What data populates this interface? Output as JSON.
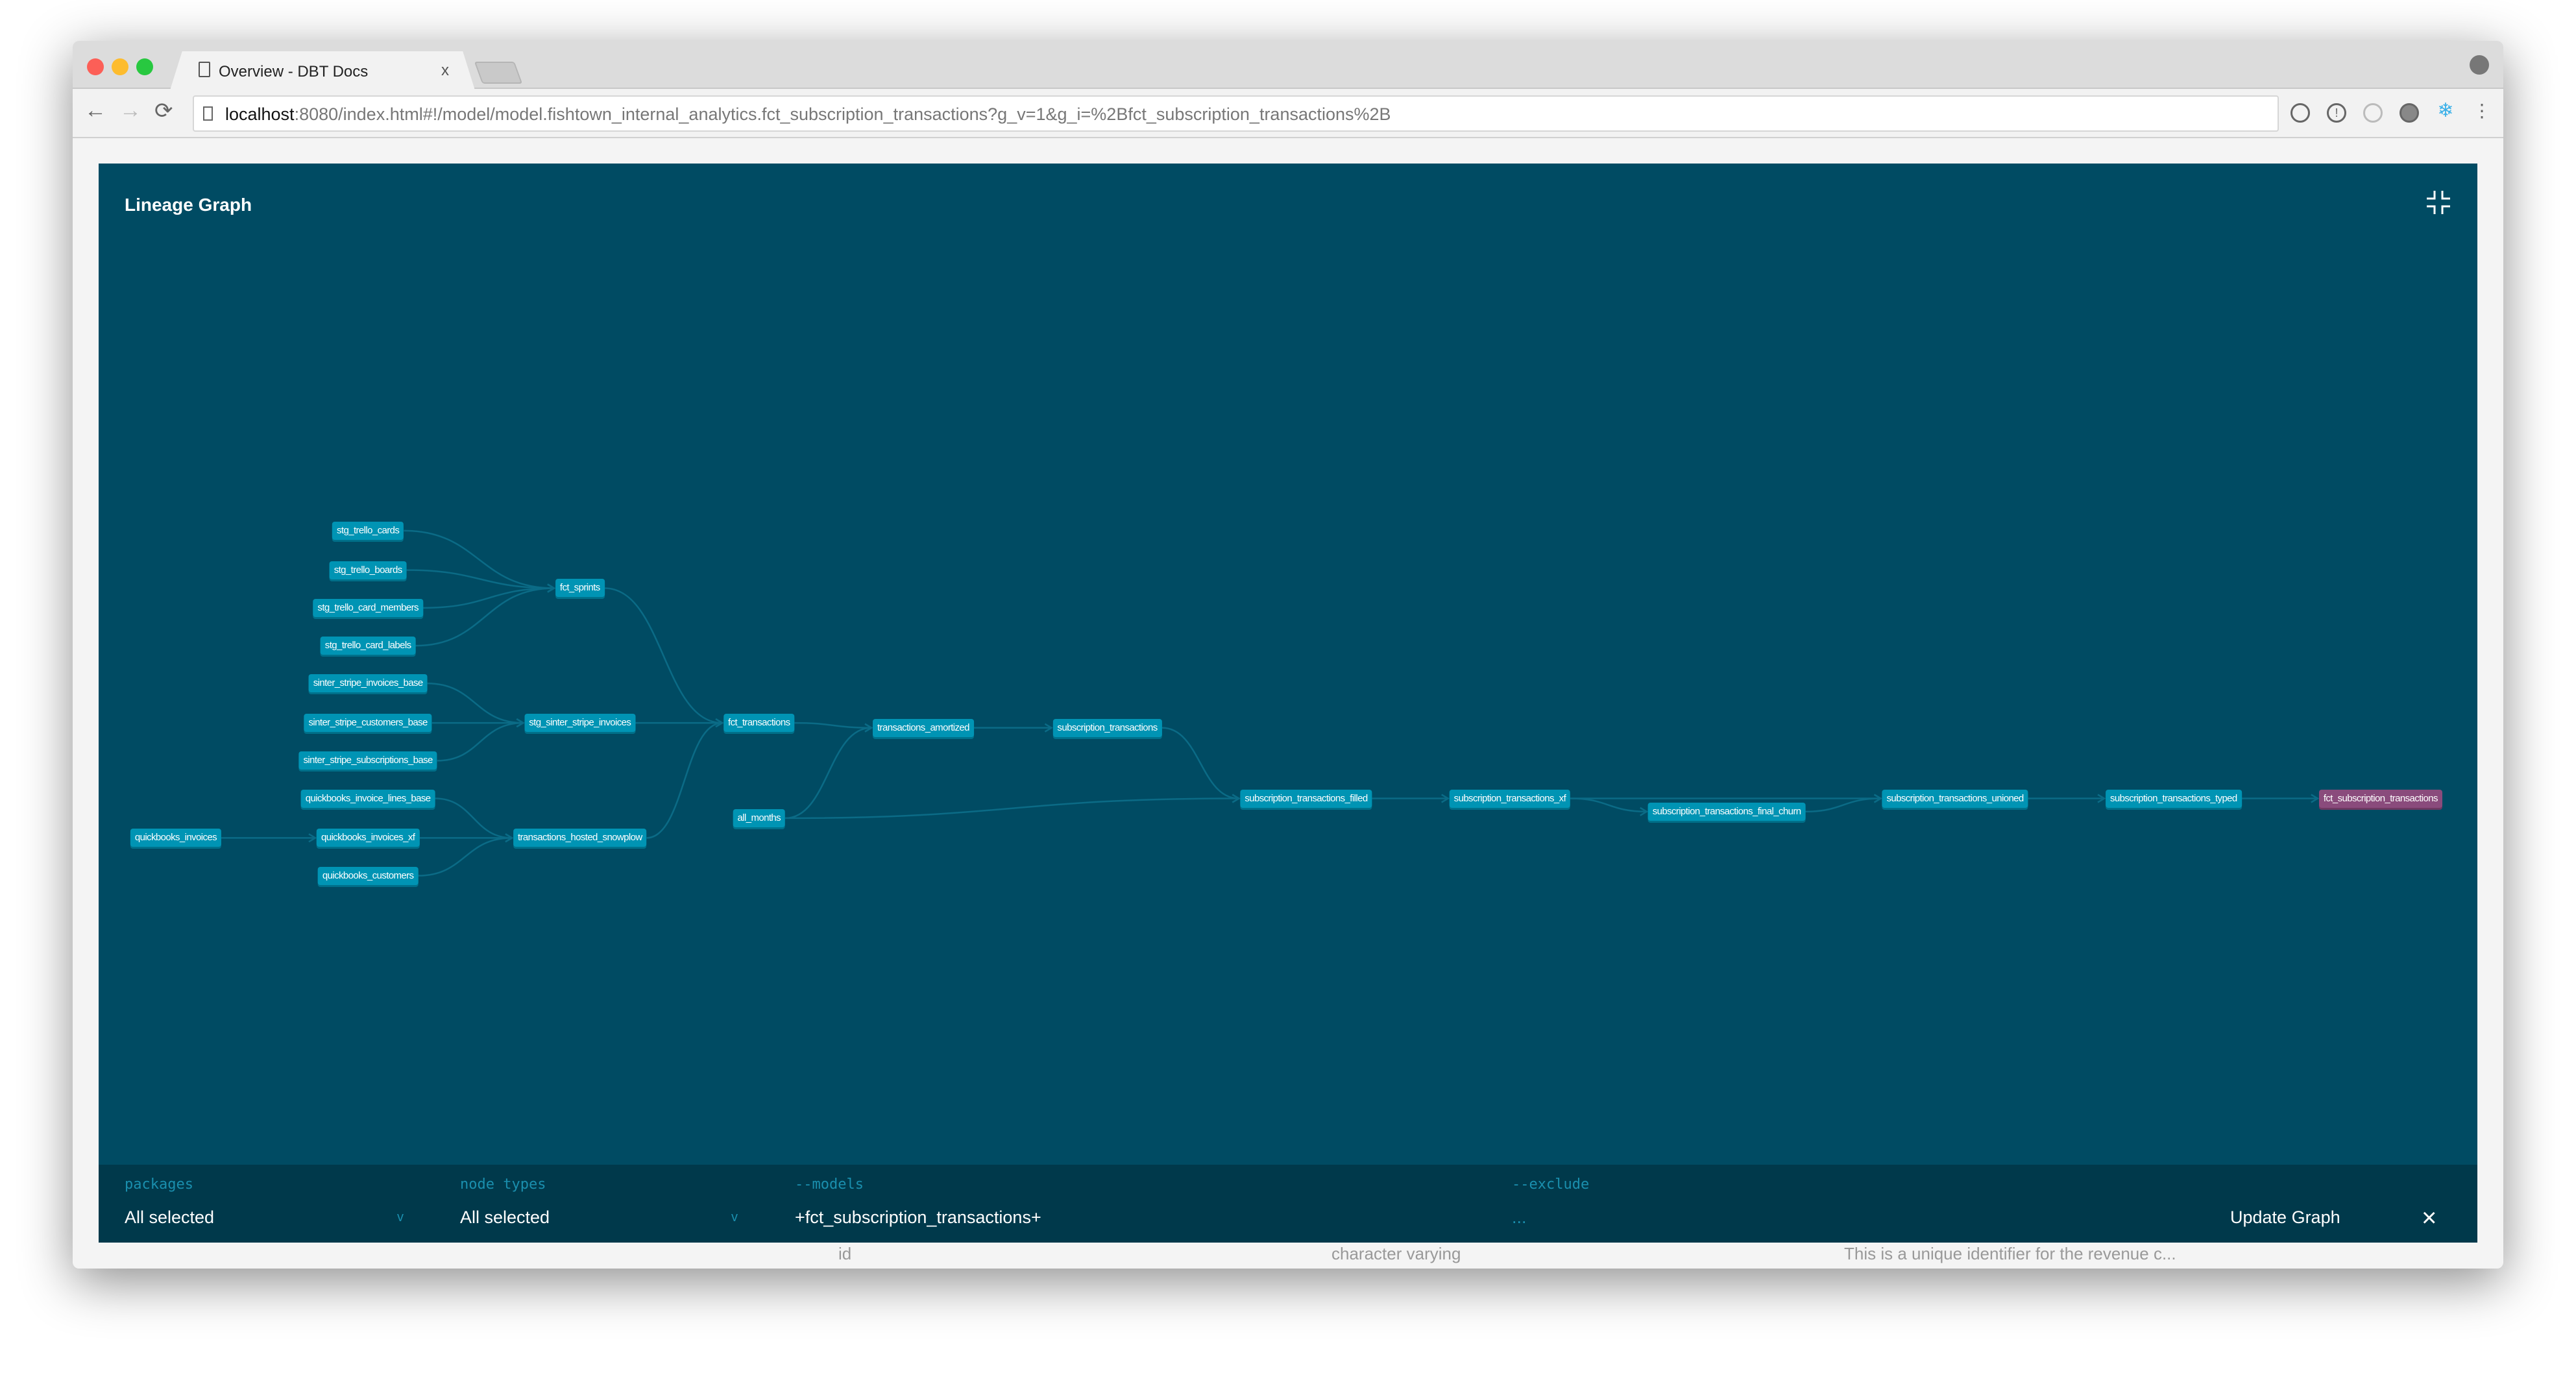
{
  "browser": {
    "tab_title": "Overview - DBT Docs",
    "tab_close": "x",
    "url_host": "localhost",
    "url_rest": ":8080/index.html#!/model/model.fishtown_internal_analytics.fct_subscription_transactions?g_v=1&g_i=%2Bfct_subscription_transactions%2B",
    "traffic_lights": [
      "#fc5f57",
      "#fdbc2e",
      "#28c840"
    ]
  },
  "background_row": {
    "col1": "id",
    "col2": "character varying",
    "col3": "This is a unique identifier for the revenue c..."
  },
  "modal": {
    "title": "Lineage Graph",
    "colors": {
      "background": "#004b63",
      "node": "#0094b4",
      "selected_node": "#8a4b7c",
      "edge": "#0b6b86",
      "footer": "#00394b"
    }
  },
  "graph": {
    "nodes": [
      {
        "id": "stg_trello_cards",
        "label": "stg_trello_cards"
      },
      {
        "id": "stg_trello_boards",
        "label": "stg_trello_boards"
      },
      {
        "id": "stg_trello_card_members",
        "label": "stg_trello_card_members"
      },
      {
        "id": "stg_trello_card_labels",
        "label": "stg_trello_card_labels"
      },
      {
        "id": "sinter_stripe_invoices_base",
        "label": "sinter_stripe_invoices_base"
      },
      {
        "id": "sinter_stripe_customers_base",
        "label": "sinter_stripe_customers_base"
      },
      {
        "id": "sinter_stripe_subscriptions_base",
        "label": "sinter_stripe_subscriptions_base"
      },
      {
        "id": "quickbooks_invoice_lines_base",
        "label": "quickbooks_invoice_lines_base"
      },
      {
        "id": "quickbooks_invoices_xf",
        "label": "quickbooks_invoices_xf"
      },
      {
        "id": "quickbooks_customers",
        "label": "quickbooks_customers"
      },
      {
        "id": "quickbooks_invoices",
        "label": "quickbooks_invoices"
      },
      {
        "id": "fct_sprints",
        "label": "fct_sprints"
      },
      {
        "id": "stg_sinter_stripe_invoices",
        "label": "stg_sinter_stripe_invoices"
      },
      {
        "id": "transactions_hosted_snowplow",
        "label": "transactions_hosted_snowplow"
      },
      {
        "id": "fct_transactions",
        "label": "fct_transactions"
      },
      {
        "id": "all_months",
        "label": "all_months"
      },
      {
        "id": "transactions_amortized",
        "label": "transactions_amortized"
      },
      {
        "id": "subscription_transactions",
        "label": "subscription_transactions"
      },
      {
        "id": "subscription_transactions_filled",
        "label": "subscription_transactions_filled"
      },
      {
        "id": "subscription_transactions_xf",
        "label": "subscription_transactions_xf"
      },
      {
        "id": "subscription_transactions_final_churn",
        "label": "subscription_transactions_final_churn"
      },
      {
        "id": "subscription_transactions_unioned",
        "label": "subscription_transactions_unioned"
      },
      {
        "id": "subscription_transactions_typed",
        "label": "subscription_transactions_typed"
      },
      {
        "id": "fct_subscription_transactions",
        "label": "fct_subscription_transactions",
        "selected": true
      }
    ],
    "edges": [
      [
        "stg_trello_cards",
        "fct_sprints"
      ],
      [
        "stg_trello_boards",
        "fct_sprints"
      ],
      [
        "stg_trello_card_members",
        "fct_sprints"
      ],
      [
        "stg_trello_card_labels",
        "fct_sprints"
      ],
      [
        "sinter_stripe_invoices_base",
        "stg_sinter_stripe_invoices"
      ],
      [
        "sinter_stripe_customers_base",
        "stg_sinter_stripe_invoices"
      ],
      [
        "sinter_stripe_subscriptions_base",
        "stg_sinter_stripe_invoices"
      ],
      [
        "quickbooks_invoice_lines_base",
        "transactions_hosted_snowplow"
      ],
      [
        "quickbooks_invoices_xf",
        "transactions_hosted_snowplow"
      ],
      [
        "quickbooks_customers",
        "transactions_hosted_snowplow"
      ],
      [
        "quickbooks_invoices",
        "quickbooks_invoices_xf"
      ],
      [
        "fct_sprints",
        "fct_transactions"
      ],
      [
        "stg_sinter_stripe_invoices",
        "fct_transactions"
      ],
      [
        "transactions_hosted_snowplow",
        "fct_transactions"
      ],
      [
        "fct_transactions",
        "transactions_amortized"
      ],
      [
        "all_months",
        "transactions_amortized"
      ],
      [
        "transactions_amortized",
        "subscription_transactions"
      ],
      [
        "subscription_transactions",
        "subscription_transactions_filled"
      ],
      [
        "all_months",
        "subscription_transactions_filled"
      ],
      [
        "subscription_transactions_filled",
        "subscription_transactions_xf"
      ],
      [
        "subscription_transactions_xf",
        "subscription_transactions_final_churn"
      ],
      [
        "subscription_transactions_xf",
        "subscription_transactions_unioned"
      ],
      [
        "subscription_transactions_final_churn",
        "subscription_transactions_unioned"
      ],
      [
        "subscription_transactions_unioned",
        "subscription_transactions_typed"
      ],
      [
        "subscription_transactions_typed",
        "fct_subscription_transactions"
      ]
    ]
  },
  "footer": {
    "packages_label": "packages",
    "packages_value": "All selected",
    "node_types_label": "node types",
    "node_types_value": "All selected",
    "models_label": "--models",
    "models_value": "+fct_subscription_transactions+",
    "exclude_label": "--exclude",
    "exclude_value": "...",
    "update_button": "Update Graph",
    "close_icon": "×",
    "chevron": "v"
  }
}
